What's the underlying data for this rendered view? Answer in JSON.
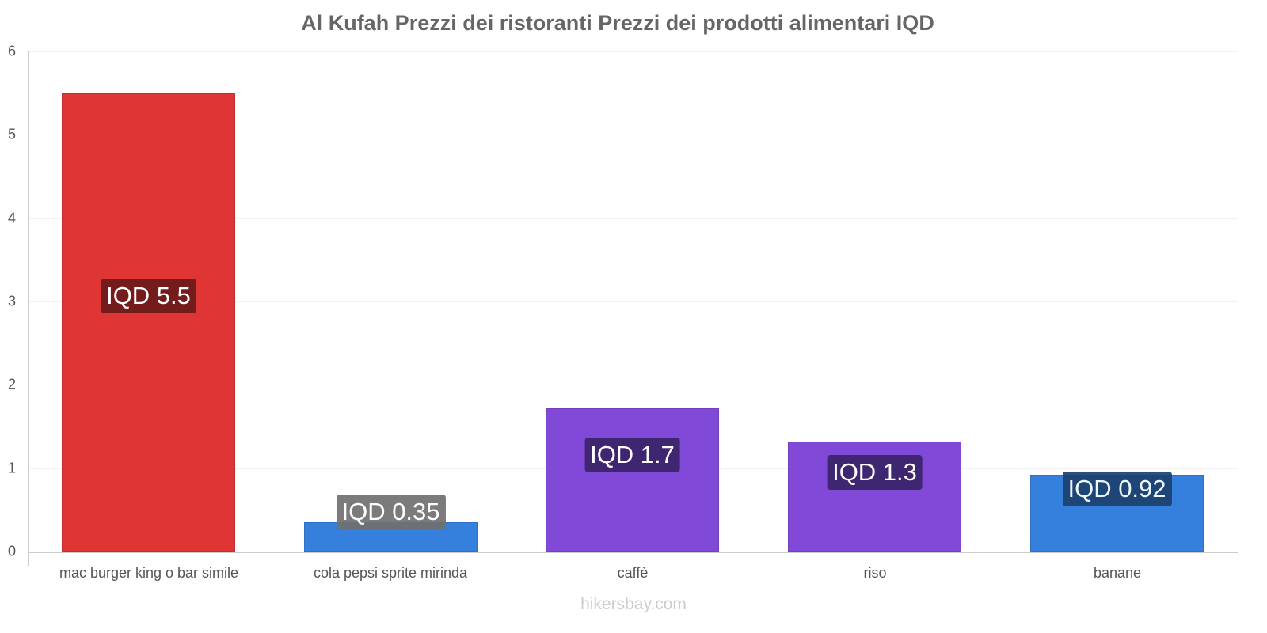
{
  "chart": {
    "title": "Al Kufah Prezzi dei ristoranti Prezzi dei prodotti alimentari IQD",
    "footer": "hikersbay.com",
    "yticks": [
      "0",
      "1",
      "2",
      "3",
      "4",
      "5",
      "6"
    ],
    "bars": [
      {
        "category": "mac burger king o bar simile",
        "label": "IQD 5.5",
        "value": 5.5,
        "color": "#e03535",
        "labelBg": "#741b1b"
      },
      {
        "category": "cola pepsi sprite mirinda",
        "label": "IQD 0.35",
        "value": 0.35,
        "color": "#3580dd",
        "labelBg": "#707070"
      },
      {
        "category": "caffè",
        "label": "IQD 1.7",
        "value": 1.72,
        "color": "#8049d8",
        "labelBg": "#3f2670"
      },
      {
        "category": "riso",
        "label": "IQD 1.3",
        "value": 1.32,
        "color": "#8049d8",
        "labelBg": "#3f2670"
      },
      {
        "category": "banane",
        "label": "IQD 0.92",
        "value": 0.92,
        "color": "#3580dd",
        "labelBg": "#1c426f"
      }
    ]
  },
  "chart_data": {
    "type": "bar",
    "title": "Al Kufah Prezzi dei ristoranti Prezzi dei prodotti alimentari IQD",
    "categories": [
      "mac burger king o bar simile",
      "cola pepsi sprite mirinda",
      "caffè",
      "riso",
      "banane"
    ],
    "values": [
      5.5,
      0.35,
      1.7,
      1.3,
      0.92
    ],
    "data_labels": [
      "IQD 5.5",
      "IQD 0.35",
      "IQD 1.7",
      "IQD 1.3",
      "IQD 0.92"
    ],
    "colors": [
      "#e03535",
      "#3580dd",
      "#8049d8",
      "#8049d8",
      "#3580dd"
    ],
    "xlabel": "",
    "ylabel": "",
    "ylim": [
      0,
      6
    ],
    "yticks": [
      0,
      1,
      2,
      3,
      4,
      5,
      6
    ],
    "grid": true,
    "legend": "none",
    "source": "hikersbay.com"
  }
}
